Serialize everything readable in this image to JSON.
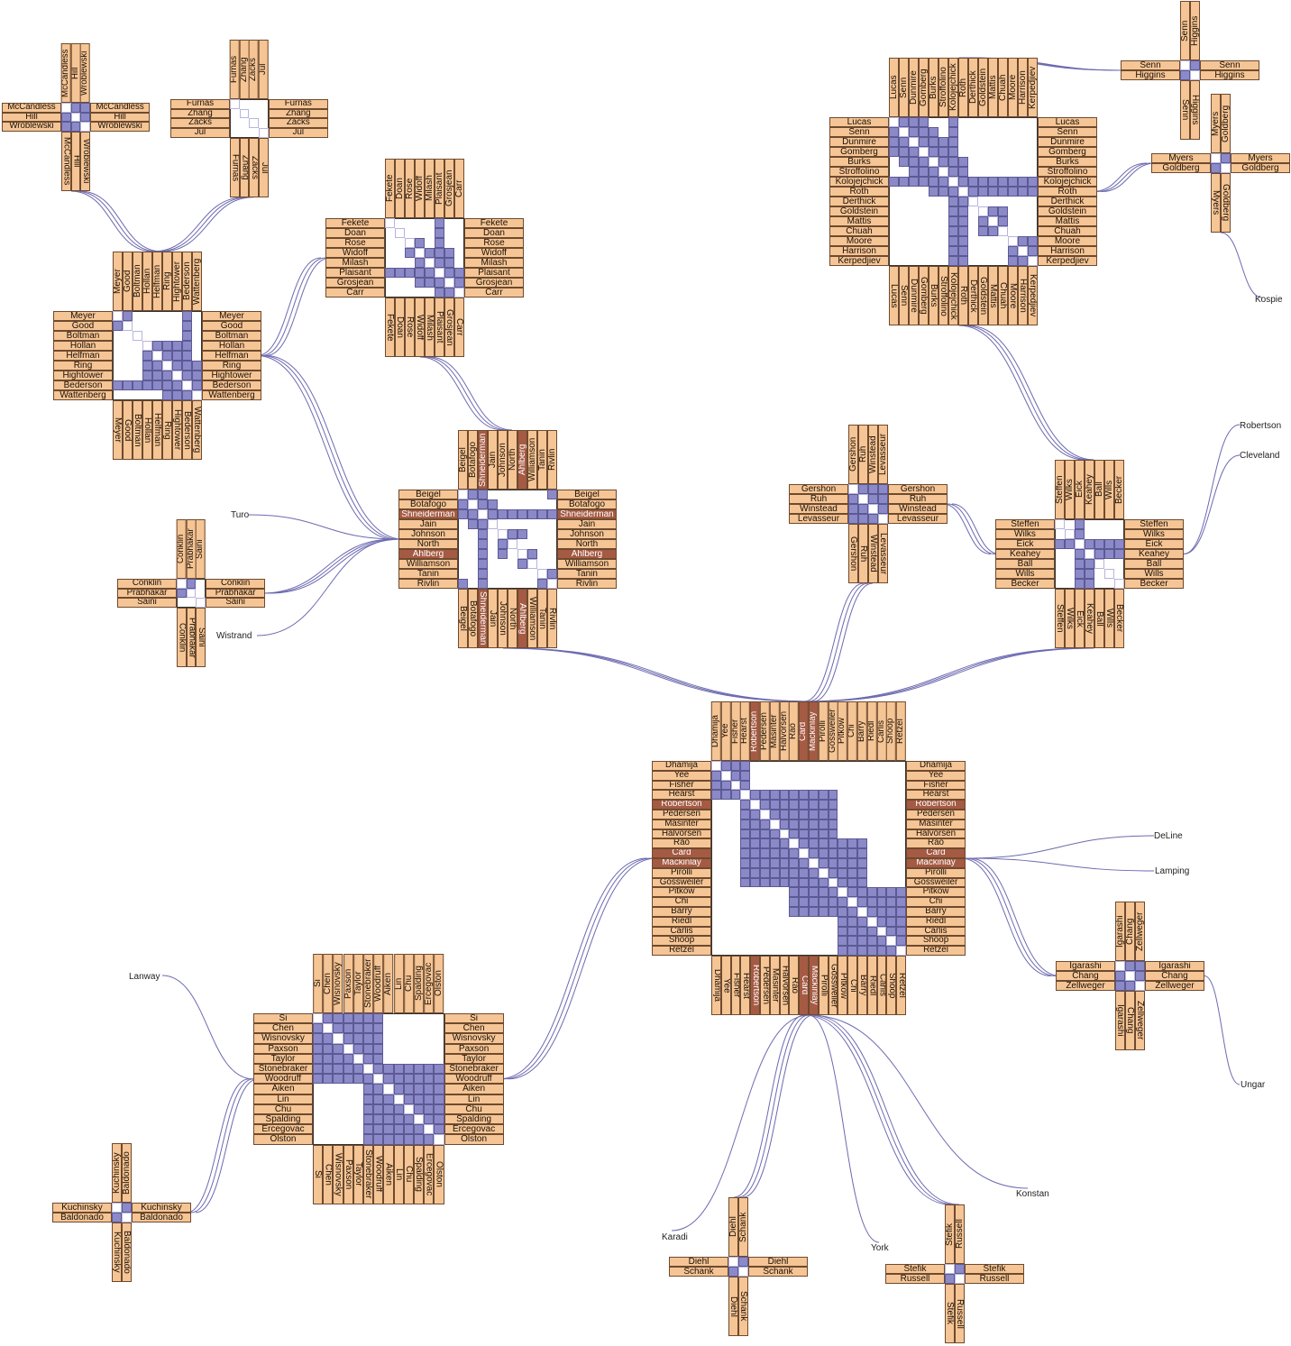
{
  "colors": {
    "label_bg": "#f5c595",
    "label_border": "#6e4a2e",
    "highlight_bg": "#a55a43",
    "cell_on": "#8c89c8",
    "cell_border": "#5c5a94",
    "link": "#6c6ab0"
  },
  "clusters": [
    {
      "id": "c1",
      "names": [
        "McCandless",
        "Hill",
        "Wroblewski"
      ],
      "size": "small"
    },
    {
      "id": "c2",
      "names": [
        "Furnas",
        "Zhang",
        "Zacks",
        "Jul"
      ],
      "size": "small"
    },
    {
      "id": "c3",
      "names": [
        "Fekete",
        "Doan",
        "Rose",
        "Widoff",
        "Milash",
        "Plaisant",
        "Grosjean",
        "Carr"
      ],
      "size": "medium"
    },
    {
      "id": "c4",
      "names": [
        "Meyer",
        "Good",
        "Boltman",
        "Hollan",
        "Helfman",
        "Ring",
        "Hightower",
        "Bederson",
        "Wattenberg"
      ],
      "size": "medium"
    },
    {
      "id": "c5",
      "names": [
        "Beigel",
        "Botafogo",
        "Shneiderman",
        "Jain",
        "Johnson",
        "North",
        "Ahlberg",
        "Williamson",
        "Tanin",
        "Rivlin"
      ],
      "highlight": [
        "Shneiderman",
        "Ahlberg"
      ],
      "size": "medium"
    },
    {
      "id": "c6",
      "names": [
        "Conklin",
        "Prabhakar",
        "Saini"
      ],
      "size": "small"
    },
    {
      "id": "c7",
      "names": [
        "Lucas",
        "Senn",
        "Dunmire",
        "Gomberg",
        "Burks",
        "Stroffolino",
        "Kolojejchick",
        "Roth",
        "Derthick",
        "Goldstein",
        "Mattis",
        "Chuah",
        "Moore",
        "Harrison",
        "Kerpedjiev"
      ],
      "size": "large"
    },
    {
      "id": "c8",
      "names": [
        "Senn",
        "Higgins"
      ],
      "size": "small"
    },
    {
      "id": "c9",
      "names": [
        "Myers",
        "Goldberg"
      ],
      "size": "small"
    },
    {
      "id": "c10",
      "names": [
        "Gershon",
        "Ruh",
        "Winstead",
        "Levasseur"
      ],
      "size": "small"
    },
    {
      "id": "c11",
      "names": [
        "Steffen",
        "Wilks",
        "Eick",
        "Keahey",
        "Ball",
        "Wills",
        "Becker"
      ],
      "size": "medium"
    },
    {
      "id": "c12",
      "names": [
        "Dhamija",
        "Yee",
        "Fisher",
        "Hearst",
        "Robertson",
        "Pedersen",
        "Masinter",
        "Halvorsen",
        "Rao",
        "Card",
        "Mackinlay",
        "Pirolli",
        "Gossweiler",
        "Pitkow",
        "Chi",
        "Barry",
        "Riedl",
        "Carlis",
        "Shoop",
        "Retzel"
      ],
      "highlight": [
        "Robertson",
        "Card",
        "Mackinlay"
      ],
      "size": "large"
    },
    {
      "id": "c13",
      "names": [
        "Igarashi",
        "Chang",
        "Zellweger"
      ],
      "size": "small"
    },
    {
      "id": "c14",
      "names": [
        "Si",
        "Chen",
        "Wisnovsky",
        "Paxson",
        "Taylor",
        "Stonebraker",
        "Woodruff",
        "Aiken",
        "Lin",
        "Chu",
        "Spalding",
        "Ercegovac",
        "Olston"
      ],
      "size": "large"
    },
    {
      "id": "c15",
      "names": [
        "Kuchinsky",
        "Baldonado"
      ],
      "size": "small"
    },
    {
      "id": "c16",
      "names": [
        "Diehl",
        "Schank"
      ],
      "size": "small"
    },
    {
      "id": "c17",
      "names": [
        "Stefik",
        "Russell"
      ],
      "size": "small"
    }
  ],
  "singletons": {
    "turo": "Turo",
    "wistrand": "Wistrand",
    "kospie": "Kospie",
    "robertson": "Robertson",
    "cleveland": "Cleveland",
    "deline": "DeLine",
    "lamping": "Lamping",
    "ungar": "Ungar",
    "konstan": "Konstan",
    "karadi": "Karadi",
    "york": "York",
    "lanway": "Lanway"
  }
}
